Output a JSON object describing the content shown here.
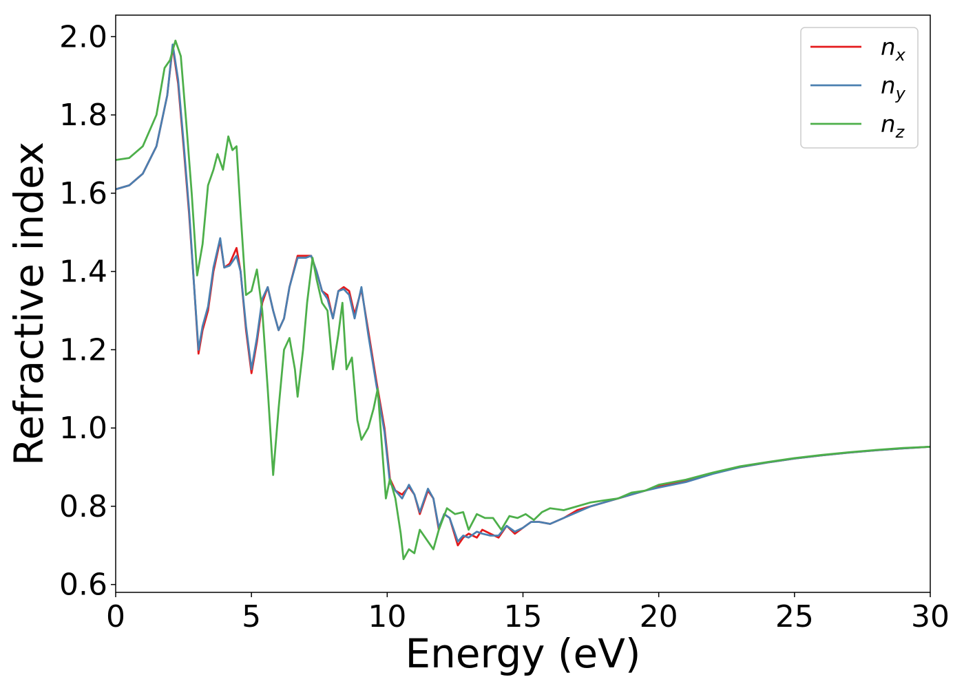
{
  "chart_data": {
    "type": "line",
    "xlabel": "Energy (eV)",
    "ylabel": "Refractive index",
    "xlim": [
      0,
      30
    ],
    "ylim": [
      0.58,
      2.055
    ],
    "xticks": [
      "0",
      "5",
      "10",
      "15",
      "20",
      "25",
      "30"
    ],
    "yticks": [
      "0.6",
      "0.8",
      "1.0",
      "1.2",
      "1.4",
      "1.6",
      "1.8",
      "2.0"
    ],
    "legend_position": "top-right",
    "grid": false,
    "series": [
      {
        "name": "n",
        "subscript": "x",
        "color": "#e41a1c",
        "points": [
          [
            0,
            1.61
          ],
          [
            0.5,
            1.62
          ],
          [
            1,
            1.65
          ],
          [
            1.5,
            1.72
          ],
          [
            1.9,
            1.85
          ],
          [
            2.1,
            1.975
          ],
          [
            2.3,
            1.88
          ],
          [
            2.5,
            1.72
          ],
          [
            2.7,
            1.55
          ],
          [
            2.9,
            1.35
          ],
          [
            3.05,
            1.19
          ],
          [
            3.2,
            1.25
          ],
          [
            3.4,
            1.3
          ],
          [
            3.6,
            1.4
          ],
          [
            3.85,
            1.48
          ],
          [
            4.0,
            1.41
          ],
          [
            4.2,
            1.42
          ],
          [
            4.45,
            1.46
          ],
          [
            4.6,
            1.4
          ],
          [
            4.8,
            1.25
          ],
          [
            5.0,
            1.14
          ],
          [
            5.2,
            1.22
          ],
          [
            5.4,
            1.32
          ],
          [
            5.6,
            1.36
          ],
          [
            5.8,
            1.3
          ],
          [
            6.0,
            1.25
          ],
          [
            6.2,
            1.28
          ],
          [
            6.4,
            1.36
          ],
          [
            6.7,
            1.44
          ],
          [
            7.0,
            1.44
          ],
          [
            7.2,
            1.44
          ],
          [
            7.4,
            1.4
          ],
          [
            7.6,
            1.35
          ],
          [
            7.8,
            1.34
          ],
          [
            8.0,
            1.28
          ],
          [
            8.2,
            1.35
          ],
          [
            8.4,
            1.36
          ],
          [
            8.6,
            1.35
          ],
          [
            8.8,
            1.29
          ],
          [
            9.05,
            1.355
          ],
          [
            9.3,
            1.25
          ],
          [
            9.6,
            1.12
          ],
          [
            9.9,
            1.0
          ],
          [
            10.1,
            0.87
          ],
          [
            10.3,
            0.84
          ],
          [
            10.55,
            0.83
          ],
          [
            10.8,
            0.85
          ],
          [
            11.0,
            0.83
          ],
          [
            11.2,
            0.78
          ],
          [
            11.5,
            0.84
          ],
          [
            11.7,
            0.82
          ],
          [
            11.9,
            0.74
          ],
          [
            12.1,
            0.78
          ],
          [
            12.3,
            0.77
          ],
          [
            12.6,
            0.7
          ],
          [
            12.8,
            0.72
          ],
          [
            13.0,
            0.73
          ],
          [
            13.3,
            0.72
          ],
          [
            13.5,
            0.74
          ],
          [
            13.8,
            0.73
          ],
          [
            14.1,
            0.72
          ],
          [
            14.4,
            0.75
          ],
          [
            14.7,
            0.73
          ],
          [
            15.0,
            0.745
          ],
          [
            15.3,
            0.76
          ],
          [
            15.6,
            0.76
          ],
          [
            16.0,
            0.755
          ],
          [
            16.5,
            0.77
          ],
          [
            17.0,
            0.79
          ],
          [
            17.5,
            0.8
          ],
          [
            18.0,
            0.81
          ],
          [
            18.5,
            0.82
          ],
          [
            19.0,
            0.83
          ],
          [
            19.5,
            0.84
          ],
          [
            20.0,
            0.85
          ],
          [
            21.0,
            0.865
          ],
          [
            22.0,
            0.885
          ],
          [
            23.0,
            0.9
          ],
          [
            24.0,
            0.912
          ],
          [
            25.0,
            0.922
          ],
          [
            26.0,
            0.93
          ],
          [
            27.0,
            0.937
          ],
          [
            28.0,
            0.943
          ],
          [
            29.0,
            0.948
          ],
          [
            30.0,
            0.952
          ]
        ]
      },
      {
        "name": "n",
        "subscript": "y",
        "color": "#4a7fb0",
        "points": [
          [
            0,
            1.61
          ],
          [
            0.5,
            1.62
          ],
          [
            1,
            1.65
          ],
          [
            1.5,
            1.72
          ],
          [
            1.9,
            1.85
          ],
          [
            2.1,
            1.98
          ],
          [
            2.3,
            1.89
          ],
          [
            2.5,
            1.73
          ],
          [
            2.7,
            1.56
          ],
          [
            2.9,
            1.35
          ],
          [
            3.05,
            1.2
          ],
          [
            3.2,
            1.26
          ],
          [
            3.4,
            1.31
          ],
          [
            3.6,
            1.41
          ],
          [
            3.85,
            1.485
          ],
          [
            4.0,
            1.41
          ],
          [
            4.2,
            1.415
          ],
          [
            4.45,
            1.44
          ],
          [
            4.6,
            1.4
          ],
          [
            4.8,
            1.26
          ],
          [
            5.0,
            1.15
          ],
          [
            5.2,
            1.23
          ],
          [
            5.4,
            1.33
          ],
          [
            5.6,
            1.36
          ],
          [
            5.8,
            1.3
          ],
          [
            6.0,
            1.25
          ],
          [
            6.2,
            1.28
          ],
          [
            6.4,
            1.36
          ],
          [
            6.7,
            1.435
          ],
          [
            7.0,
            1.435
          ],
          [
            7.2,
            1.44
          ],
          [
            7.4,
            1.4
          ],
          [
            7.6,
            1.35
          ],
          [
            7.8,
            1.33
          ],
          [
            8.0,
            1.28
          ],
          [
            8.2,
            1.35
          ],
          [
            8.4,
            1.355
          ],
          [
            8.6,
            1.34
          ],
          [
            8.8,
            1.28
          ],
          [
            9.05,
            1.36
          ],
          [
            9.3,
            1.24
          ],
          [
            9.6,
            1.11
          ],
          [
            9.9,
            0.99
          ],
          [
            10.1,
            0.86
          ],
          [
            10.3,
            0.84
          ],
          [
            10.55,
            0.82
          ],
          [
            10.8,
            0.855
          ],
          [
            11.0,
            0.83
          ],
          [
            11.2,
            0.785
          ],
          [
            11.5,
            0.845
          ],
          [
            11.7,
            0.82
          ],
          [
            11.9,
            0.745
          ],
          [
            12.1,
            0.78
          ],
          [
            12.3,
            0.77
          ],
          [
            12.6,
            0.71
          ],
          [
            12.8,
            0.725
          ],
          [
            13.0,
            0.72
          ],
          [
            13.3,
            0.735
          ],
          [
            13.5,
            0.73
          ],
          [
            13.8,
            0.725
          ],
          [
            14.1,
            0.725
          ],
          [
            14.4,
            0.75
          ],
          [
            14.7,
            0.735
          ],
          [
            15.0,
            0.745
          ],
          [
            15.3,
            0.76
          ],
          [
            15.6,
            0.76
          ],
          [
            16.0,
            0.755
          ],
          [
            16.5,
            0.77
          ],
          [
            17.0,
            0.785
          ],
          [
            17.5,
            0.8
          ],
          [
            18.0,
            0.81
          ],
          [
            18.5,
            0.82
          ],
          [
            19.0,
            0.83
          ],
          [
            19.5,
            0.84
          ],
          [
            20.0,
            0.848
          ],
          [
            21.0,
            0.862
          ],
          [
            22.0,
            0.883
          ],
          [
            23.0,
            0.9
          ],
          [
            24.0,
            0.912
          ],
          [
            25.0,
            0.922
          ],
          [
            26.0,
            0.93
          ],
          [
            27.0,
            0.937
          ],
          [
            28.0,
            0.943
          ],
          [
            29.0,
            0.948
          ],
          [
            30.0,
            0.952
          ]
        ]
      },
      {
        "name": "n",
        "subscript": "z",
        "color": "#4daf4a",
        "points": [
          [
            0,
            1.685
          ],
          [
            0.5,
            1.69
          ],
          [
            1,
            1.72
          ],
          [
            1.5,
            1.8
          ],
          [
            1.8,
            1.92
          ],
          [
            2.0,
            1.94
          ],
          [
            2.2,
            1.99
          ],
          [
            2.4,
            1.95
          ],
          [
            2.6,
            1.78
          ],
          [
            2.8,
            1.6
          ],
          [
            3.0,
            1.39
          ],
          [
            3.2,
            1.47
          ],
          [
            3.4,
            1.62
          ],
          [
            3.6,
            1.66
          ],
          [
            3.75,
            1.7
          ],
          [
            3.95,
            1.66
          ],
          [
            4.15,
            1.745
          ],
          [
            4.3,
            1.71
          ],
          [
            4.45,
            1.72
          ],
          [
            4.6,
            1.55
          ],
          [
            4.8,
            1.34
          ],
          [
            5.0,
            1.35
          ],
          [
            5.2,
            1.405
          ],
          [
            5.4,
            1.3
          ],
          [
            5.6,
            1.1
          ],
          [
            5.8,
            0.88
          ],
          [
            6.0,
            1.05
          ],
          [
            6.2,
            1.2
          ],
          [
            6.4,
            1.23
          ],
          [
            6.6,
            1.15
          ],
          [
            6.7,
            1.08
          ],
          [
            6.9,
            1.2
          ],
          [
            7.05,
            1.32
          ],
          [
            7.25,
            1.435
          ],
          [
            7.4,
            1.38
          ],
          [
            7.6,
            1.32
          ],
          [
            7.8,
            1.3
          ],
          [
            8.0,
            1.15
          ],
          [
            8.2,
            1.24
          ],
          [
            8.35,
            1.32
          ],
          [
            8.5,
            1.15
          ],
          [
            8.7,
            1.18
          ],
          [
            8.9,
            1.02
          ],
          [
            9.05,
            0.97
          ],
          [
            9.3,
            1.0
          ],
          [
            9.5,
            1.05
          ],
          [
            9.65,
            1.1
          ],
          [
            9.8,
            0.96
          ],
          [
            9.95,
            0.82
          ],
          [
            10.1,
            0.87
          ],
          [
            10.3,
            0.82
          ],
          [
            10.5,
            0.73
          ],
          [
            10.6,
            0.665
          ],
          [
            10.8,
            0.69
          ],
          [
            11.0,
            0.68
          ],
          [
            11.2,
            0.74
          ],
          [
            11.5,
            0.71
          ],
          [
            11.7,
            0.69
          ],
          [
            11.9,
            0.74
          ],
          [
            12.2,
            0.795
          ],
          [
            12.5,
            0.78
          ],
          [
            12.8,
            0.785
          ],
          [
            13.0,
            0.74
          ],
          [
            13.3,
            0.78
          ],
          [
            13.6,
            0.77
          ],
          [
            13.9,
            0.77
          ],
          [
            14.2,
            0.74
          ],
          [
            14.5,
            0.775
          ],
          [
            14.8,
            0.77
          ],
          [
            15.1,
            0.78
          ],
          [
            15.4,
            0.765
          ],
          [
            15.7,
            0.785
          ],
          [
            16.0,
            0.795
          ],
          [
            16.5,
            0.79
          ],
          [
            17.0,
            0.8
          ],
          [
            17.5,
            0.81
          ],
          [
            18.0,
            0.815
          ],
          [
            18.5,
            0.82
          ],
          [
            19.0,
            0.835
          ],
          [
            19.5,
            0.84
          ],
          [
            20.0,
            0.855
          ],
          [
            21.0,
            0.868
          ],
          [
            22.0,
            0.886
          ],
          [
            23.0,
            0.902
          ],
          [
            24.0,
            0.913
          ],
          [
            25.0,
            0.923
          ],
          [
            26.0,
            0.931
          ],
          [
            27.0,
            0.938
          ],
          [
            28.0,
            0.944
          ],
          [
            29.0,
            0.949
          ],
          [
            30.0,
            0.952
          ]
        ]
      }
    ]
  }
}
